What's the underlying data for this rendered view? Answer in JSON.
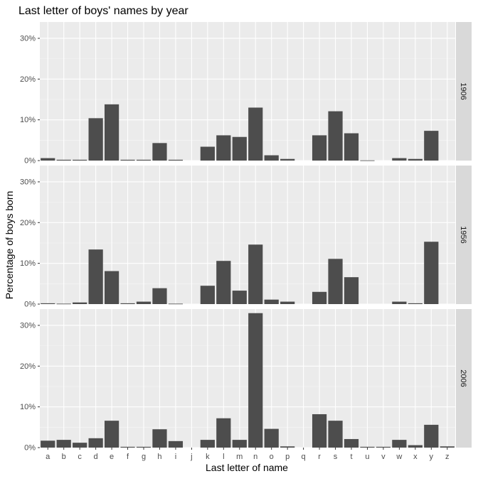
{
  "chart_data": {
    "type": "bar",
    "title": "Last letter of boys' names by year",
    "xlabel": "Last letter of name",
    "ylabel": "Percentage of boys born",
    "ylim": [
      0,
      34
    ],
    "y_ticks": [
      0,
      10,
      20,
      30
    ],
    "y_tick_labels": [
      "0%",
      "10%",
      "20%",
      "30%"
    ],
    "categories": [
      "a",
      "b",
      "c",
      "d",
      "e",
      "f",
      "g",
      "h",
      "i",
      "j",
      "k",
      "l",
      "m",
      "n",
      "o",
      "p",
      "q",
      "r",
      "s",
      "t",
      "u",
      "v",
      "w",
      "x",
      "y",
      "z"
    ],
    "facet_position": "right",
    "grid": true,
    "colors": {
      "panel_bg": "#ebebeb",
      "grid_major": "#ffffff",
      "grid_minor": "#f5f5f5",
      "bar": "#4d4d4d",
      "strip_bg": "#d9d9d9",
      "text": "#000000",
      "tick_text": "#4d4d4d"
    },
    "series": [
      {
        "name": "1906",
        "values": [
          0.6,
          0.2,
          0.2,
          10.4,
          13.8,
          0.2,
          0.2,
          4.3,
          0.2,
          0,
          3.4,
          6.2,
          5.8,
          13.0,
          1.3,
          0.4,
          0,
          6.2,
          12.1,
          6.7,
          0.05,
          0,
          0.6,
          0.4,
          7.3,
          0
        ]
      },
      {
        "name": "1956",
        "values": [
          0.2,
          0.1,
          0.4,
          13.4,
          8.1,
          0.2,
          0.6,
          3.9,
          0.1,
          0,
          4.5,
          10.6,
          3.3,
          14.6,
          1.1,
          0.6,
          0,
          3.0,
          11.1,
          6.6,
          0,
          0,
          0.6,
          0.2,
          15.3,
          0
        ]
      },
      {
        "name": "2006",
        "values": [
          1.7,
          1.9,
          1.2,
          2.3,
          6.6,
          0.2,
          0.2,
          4.5,
          1.6,
          0,
          1.9,
          7.2,
          1.9,
          33.0,
          4.6,
          0.3,
          0,
          8.2,
          6.6,
          2.1,
          0.2,
          0.2,
          1.9,
          0.6,
          5.6,
          0.3
        ]
      }
    ]
  }
}
